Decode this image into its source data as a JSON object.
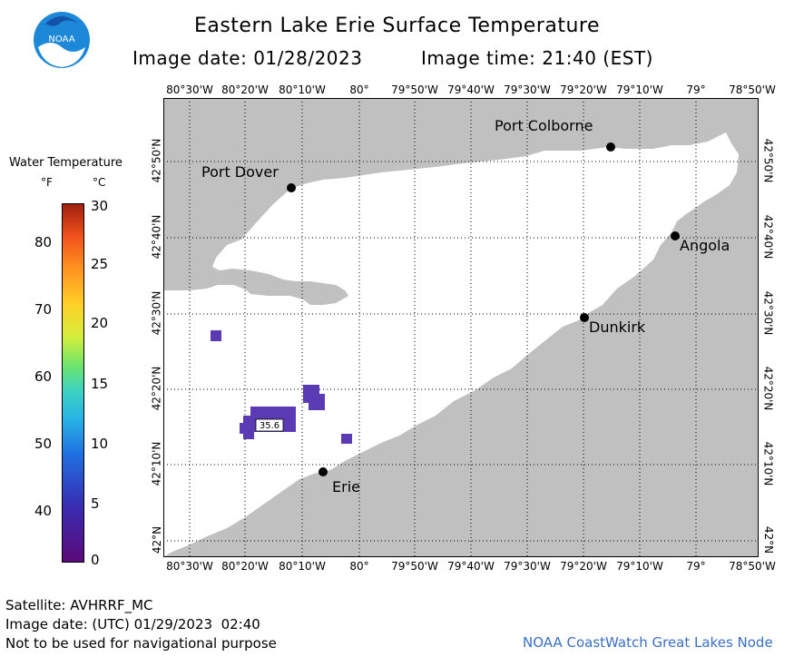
{
  "header": {
    "title": "Eastern Lake Erie Surface Temperature",
    "image_date": "Image date: 01/28/2023",
    "image_time": "Image time: 21:40 (EST)"
  },
  "logo": {
    "text": "NOAA"
  },
  "legend": {
    "title": "Water Temperature",
    "unit_f": "°F",
    "unit_c": "°C",
    "f_ticks": [
      "80",
      "70",
      "60",
      "50",
      "40"
    ],
    "c_ticks": [
      "30",
      "25",
      "20",
      "15",
      "10",
      "5",
      "0"
    ],
    "colors": [
      "#5b0a7a",
      "#3a2bb0",
      "#1f6fe0",
      "#28b4e6",
      "#3ed3c1",
      "#6fe56a",
      "#d6ee3c",
      "#ffd027",
      "#ff9220",
      "#f0521c",
      "#a02010"
    ]
  },
  "map": {
    "lon_labels": [
      "80°30'W",
      "80°20'W",
      "80°10'W",
      "80°",
      "79°50'W",
      "79°40'W",
      "79°30'W",
      "79°20'W",
      "79°10'W",
      "79°",
      "78°50'W"
    ],
    "lat_labels": [
      "42°50'N",
      "42°40'N",
      "42°30'N",
      "42°20'N",
      "42°10'N",
      "42°N"
    ],
    "land_color": "#c0c0c0",
    "water_color": "#ffffff",
    "cloud_color": "#5a3bb4",
    "places": [
      {
        "name": "Port Colborne"
      },
      {
        "name": "Port Dover"
      },
      {
        "name": "Angola"
      },
      {
        "name": "Dunkirk"
      },
      {
        "name": "Erie"
      }
    ],
    "value_label": "35.6"
  },
  "footer": {
    "satellite": "Satellite: AVHRRF_MC",
    "utc_date": "Image date: (UTC) 01/29/2023  02:40",
    "disclaimer": "Not to be used for navigational purpose",
    "node": "NOAA CoastWatch Great Lakes Node"
  }
}
